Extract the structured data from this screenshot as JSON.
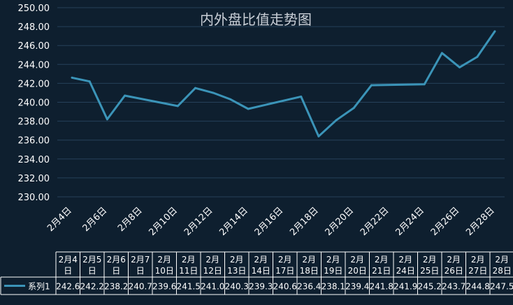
{
  "chart_data": {
    "type": "line",
    "title": "内外盘比值走势图",
    "categories": [
      "2月4日",
      "2月5日",
      "2月6日",
      "2月7日",
      "2月10日",
      "2月11日",
      "2月12日",
      "2月13日",
      "2月14日",
      "2月17日",
      "2月18日",
      "2月19日",
      "2月20日",
      "2月21日",
      "2月24日",
      "2月25日",
      "2月26日",
      "2月27日",
      "2月28日"
    ],
    "axis_tick_labels": [
      "2月4日",
      "2月6日",
      "2月8日",
      "2月10日",
      "2月12日",
      "2月14日",
      "2月16日",
      "2月18日",
      "2月20日",
      "2月22日",
      "2月24日",
      "2月26日",
      "2月28日"
    ],
    "x_dates": [
      "2025-02-04",
      "2025-02-05",
      "2025-02-06",
      "2025-02-07",
      "2025-02-10",
      "2025-02-11",
      "2025-02-12",
      "2025-02-13",
      "2025-02-14",
      "2025-02-17",
      "2025-02-18",
      "2025-02-19",
      "2025-02-20",
      "2025-02-21",
      "2025-02-24",
      "2025-02-25",
      "2025-02-26",
      "2025-02-27",
      "2025-02-28"
    ],
    "table_header_rows": [
      [
        "2月4",
        "2月5",
        "2月6",
        "2月7",
        "2月",
        "2月",
        "2月",
        "2月",
        "2月",
        "2月",
        "2月",
        "2月",
        "2月",
        "2月",
        "2月",
        "2月",
        "2月",
        "2月",
        "2月"
      ],
      [
        "日",
        "日",
        "日",
        "日",
        "10日",
        "11日",
        "12日",
        "13日",
        "14日",
        "17日",
        "18日",
        "19日",
        "20日",
        "21日",
        "24日",
        "25日",
        "26日",
        "27日",
        "28日"
      ]
    ],
    "series": [
      {
        "name": "系列1",
        "values": [
          242.6,
          242.2,
          238.2,
          240.7,
          239.6,
          241.5,
          241.0,
          240.3,
          239.3,
          240.6,
          236.4,
          238.1,
          239.4,
          241.8,
          241.9,
          245.2,
          243.7,
          244.8,
          247.5
        ],
        "value_labels": [
          "242.6",
          "242.2",
          "238.2",
          "240.7",
          "239.6",
          "241.5",
          "241.0",
          "240.3",
          "239.3",
          "240.6",
          "236.4",
          "238.1",
          "239.4",
          "241.8",
          "241.9",
          "245.2",
          "243.7",
          "244.8",
          "247.5"
        ],
        "color": "#3b94b8"
      }
    ],
    "y_ticks": [
      "230.00",
      "232.00",
      "234.00",
      "236.00",
      "238.00",
      "240.00",
      "242.00",
      "244.00",
      "246.00",
      "248.00",
      "250.00"
    ],
    "ylim": [
      230,
      250
    ],
    "grid": true,
    "legend": "bottom-left data table",
    "colors": {
      "background": "#0e1f2f",
      "grid": "#26415a",
      "line": "#3b94b8",
      "text": "#ffffff",
      "title": "#c8ced6",
      "table_border": "#ffffff"
    }
  }
}
